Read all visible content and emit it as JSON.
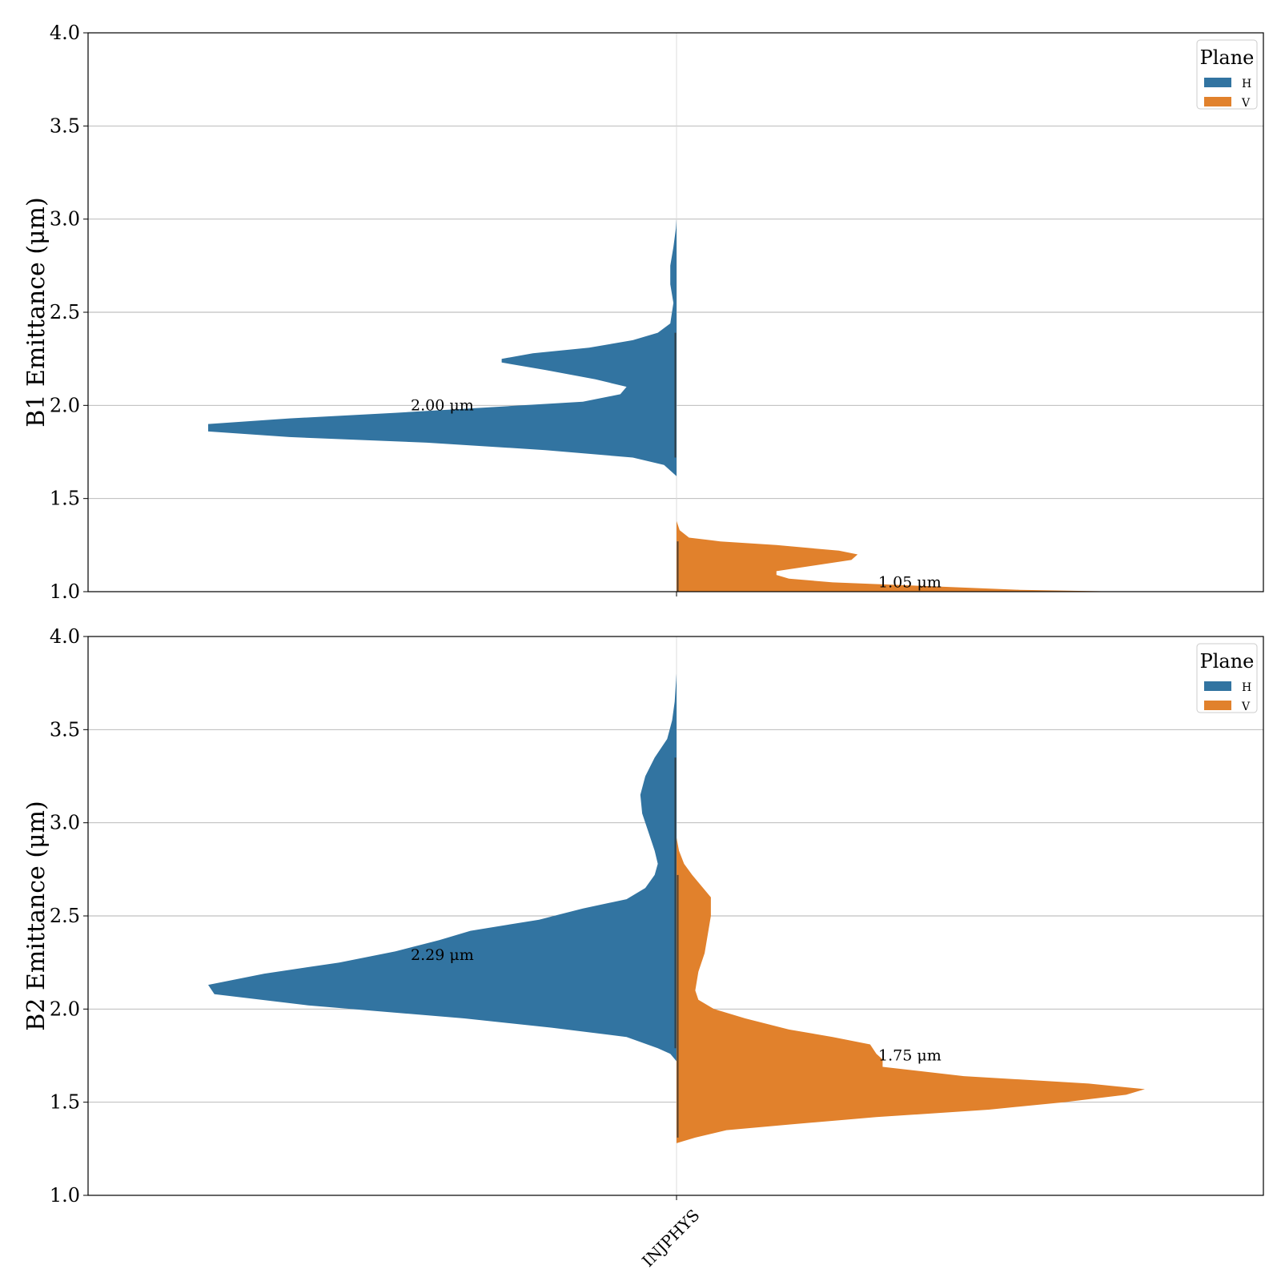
{
  "chart_data": [
    {
      "type": "violin",
      "ylabel": "B1 Emittance (μm)",
      "ylim": [
        1.0,
        4.0
      ],
      "yticks": [
        "1.0",
        "1.5",
        "2.0",
        "2.5",
        "3.0",
        "3.5",
        "4.0"
      ],
      "grid": true,
      "categories": [],
      "legend": {
        "title": "Plane",
        "position": "top-right",
        "entries": [
          "H",
          "V"
        ]
      },
      "series": [
        {
          "name": "H",
          "side": "left",
          "color": "#3274a1",
          "profile": [
            [
              1.62,
              0.0
            ],
            [
              1.68,
              0.02
            ],
            [
              1.72,
              0.07
            ],
            [
              1.76,
              0.21
            ],
            [
              1.8,
              0.4
            ],
            [
              1.83,
              0.62
            ],
            [
              1.86,
              0.75
            ],
            [
              1.9,
              0.75
            ],
            [
              1.93,
              0.62
            ],
            [
              1.96,
              0.45
            ],
            [
              1.99,
              0.3
            ],
            [
              2.02,
              0.15
            ],
            [
              2.06,
              0.09
            ],
            [
              2.1,
              0.08
            ],
            [
              2.14,
              0.13
            ],
            [
              2.19,
              0.21
            ],
            [
              2.23,
              0.28
            ],
            [
              2.25,
              0.28
            ],
            [
              2.28,
              0.23
            ],
            [
              2.31,
              0.14
            ],
            [
              2.35,
              0.07
            ],
            [
              2.39,
              0.03
            ],
            [
              2.44,
              0.01
            ],
            [
              2.55,
              0.005
            ],
            [
              2.65,
              0.01
            ],
            [
              2.75,
              0.01
            ],
            [
              2.85,
              0.005
            ],
            [
              2.95,
              0.001
            ],
            [
              3.0,
              0.0
            ]
          ],
          "median_label": "2.00 μm",
          "median_label_y": 2.0
        },
        {
          "name": "V",
          "side": "right",
          "color": "#e1812c",
          "profile": [
            [
              1.0,
              0.72
            ],
            [
              1.01,
              0.55
            ],
            [
              1.03,
              0.4
            ],
            [
              1.05,
              0.25
            ],
            [
              1.07,
              0.18
            ],
            [
              1.09,
              0.16
            ],
            [
              1.11,
              0.16
            ],
            [
              1.14,
              0.22
            ],
            [
              1.17,
              0.28
            ],
            [
              1.2,
              0.29
            ],
            [
              1.22,
              0.26
            ],
            [
              1.25,
              0.16
            ],
            [
              1.27,
              0.07
            ],
            [
              1.29,
              0.02
            ],
            [
              1.33,
              0.005
            ],
            [
              1.38,
              0.0
            ]
          ],
          "median_label": "1.05 μm",
          "median_label_y": 1.05
        }
      ]
    },
    {
      "type": "violin",
      "ylabel": "B2 Emittance (μm)",
      "ylim": [
        1.0,
        4.0
      ],
      "yticks": [
        "1.0",
        "1.5",
        "2.0",
        "2.5",
        "3.0",
        "3.5",
        "4.0"
      ],
      "grid": true,
      "categories": [
        "INJPHYS"
      ],
      "legend": {
        "title": "Plane",
        "position": "top-right",
        "entries": [
          "H",
          "V"
        ]
      },
      "series": [
        {
          "name": "H",
          "side": "left",
          "color": "#3274a1",
          "profile": [
            [
              1.72,
              0.0
            ],
            [
              1.76,
              0.01
            ],
            [
              1.79,
              0.03
            ],
            [
              1.85,
              0.08
            ],
            [
              1.9,
              0.2
            ],
            [
              1.95,
              0.34
            ],
            [
              2.02,
              0.59
            ],
            [
              2.08,
              0.74
            ],
            [
              2.13,
              0.75
            ],
            [
              2.19,
              0.66
            ],
            [
              2.25,
              0.54
            ],
            [
              2.31,
              0.45
            ],
            [
              2.37,
              0.38
            ],
            [
              2.42,
              0.33
            ],
            [
              2.48,
              0.22
            ],
            [
              2.54,
              0.15
            ],
            [
              2.59,
              0.08
            ],
            [
              2.65,
              0.05
            ],
            [
              2.72,
              0.035
            ],
            [
              2.78,
              0.03
            ],
            [
              2.85,
              0.035
            ],
            [
              2.95,
              0.045
            ],
            [
              3.05,
              0.055
            ],
            [
              3.15,
              0.058
            ],
            [
              3.25,
              0.05
            ],
            [
              3.35,
              0.035
            ],
            [
              3.45,
              0.015
            ],
            [
              3.55,
              0.007
            ],
            [
              3.65,
              0.003
            ],
            [
              3.8,
              0.0
            ]
          ],
          "median_label": "2.29 μm",
          "median_label_y": 2.29
        },
        {
          "name": "V",
          "side": "right",
          "color": "#e1812c",
          "profile": [
            [
              1.28,
              0.0
            ],
            [
              1.31,
              0.03
            ],
            [
              1.35,
              0.08
            ],
            [
              1.38,
              0.18
            ],
            [
              1.42,
              0.32
            ],
            [
              1.46,
              0.5
            ],
            [
              1.5,
              0.62
            ],
            [
              1.54,
              0.72
            ],
            [
              1.57,
              0.75
            ],
            [
              1.6,
              0.66
            ],
            [
              1.64,
              0.46
            ],
            [
              1.69,
              0.33
            ],
            [
              1.73,
              0.33
            ],
            [
              1.76,
              0.32
            ],
            [
              1.81,
              0.31
            ],
            [
              1.85,
              0.25
            ],
            [
              1.89,
              0.18
            ],
            [
              1.95,
              0.11
            ],
            [
              2.0,
              0.06
            ],
            [
              2.05,
              0.035
            ],
            [
              2.1,
              0.03
            ],
            [
              2.2,
              0.035
            ],
            [
              2.3,
              0.045
            ],
            [
              2.4,
              0.05
            ],
            [
              2.5,
              0.055
            ],
            [
              2.6,
              0.055
            ],
            [
              2.66,
              0.04
            ],
            [
              2.72,
              0.025
            ],
            [
              2.78,
              0.012
            ],
            [
              2.85,
              0.004
            ],
            [
              2.92,
              0.0
            ]
          ],
          "median_label": "1.75 μm",
          "median_label_y": 1.75
        }
      ]
    }
  ]
}
